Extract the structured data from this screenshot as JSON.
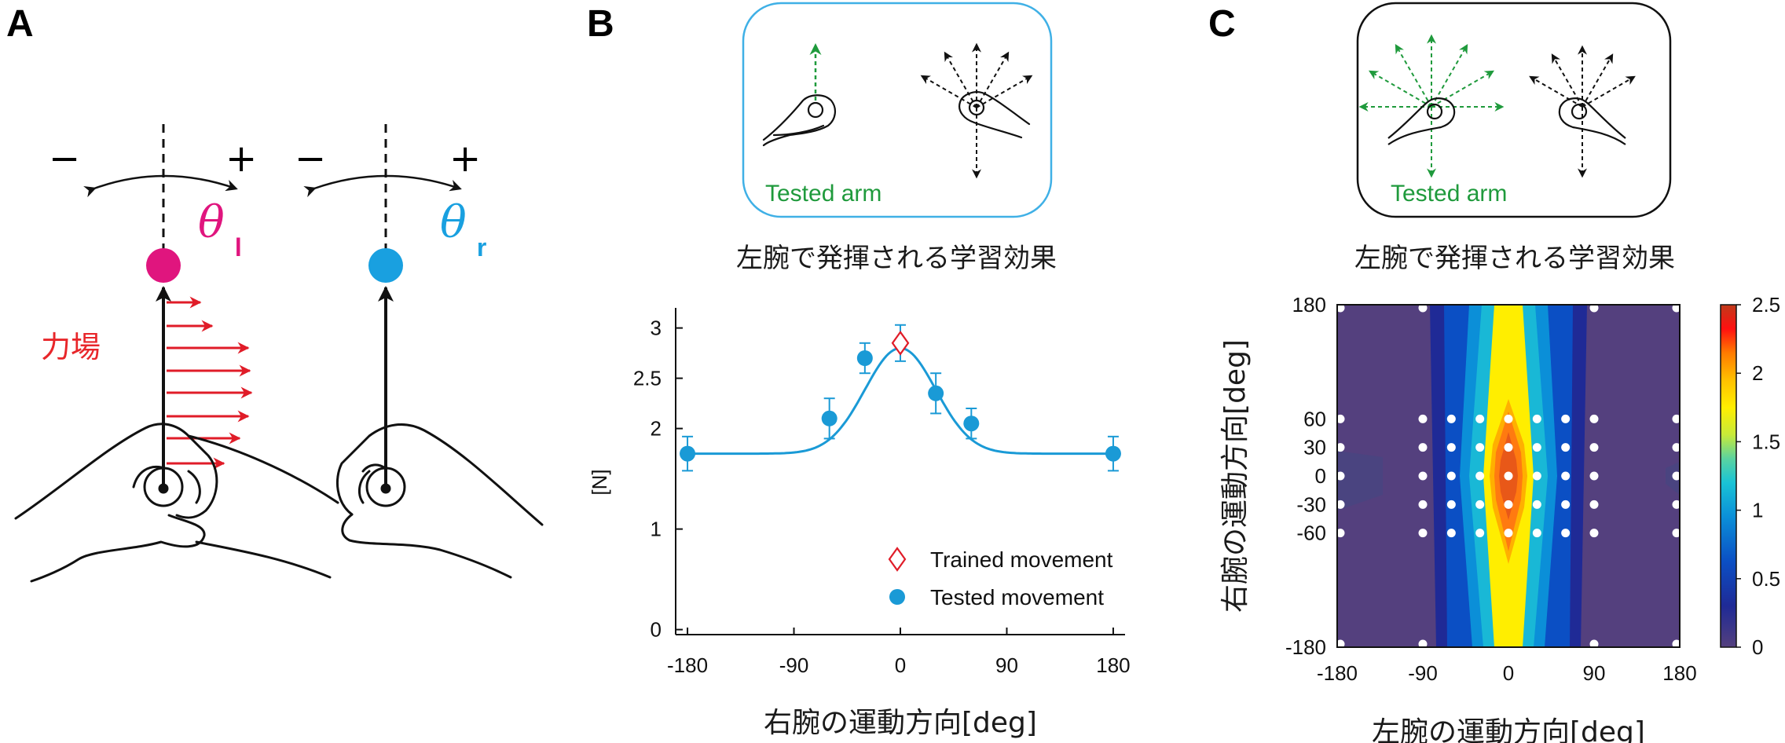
{
  "panels": {
    "a": {
      "letter": "A",
      "minus_left": "−",
      "plus_left": "+",
      "minus_right": "−",
      "plus_right": "+",
      "theta_symbol": "θ",
      "theta_left_sub": "l",
      "theta_right_sub": "r",
      "force_field_label": "力場",
      "colors": {
        "left_dot": "#e0157e",
        "right_dot": "#19a0e0",
        "force_arrows": "#e01c28"
      }
    },
    "b": {
      "letter": "B",
      "inset_label": "Tested arm",
      "title": "左腕で発揮される学習効果",
      "inset_border_color": "#3fb0e6"
    },
    "c": {
      "letter": "C",
      "inset_label": "Tested arm",
      "title": "左腕で発揮される学習効果"
    }
  },
  "chart_data": [
    {
      "type": "line",
      "panel": "B",
      "title": "左腕で発揮される学習効果",
      "xlabel": "右腕の運動方向[deg]",
      "ylabel": "[N]",
      "xlim": [
        -190,
        190
      ],
      "ylim": [
        -0.05,
        3.2
      ],
      "xticks": [
        -180,
        -90,
        0,
        90,
        180
      ],
      "xtick_labels": [
        "-180",
        "-90",
        "0",
        "90",
        "180"
      ],
      "yticks": [
        0,
        1,
        2,
        2.5,
        3
      ],
      "ytick_labels": [
        "0",
        "1",
        "2",
        "2.5",
        "3"
      ],
      "fit_curve": {
        "baseline": 1.75,
        "amplitude": 1.05,
        "sigma_deg": 30,
        "color": "#1a9ad6"
      },
      "series": [
        {
          "name": "Tested movement",
          "marker": "filled-circle",
          "color": "#1a9ad6",
          "x": [
            -180,
            -60,
            -30,
            30,
            60,
            180
          ],
          "y": [
            1.75,
            2.1,
            2.7,
            2.35,
            2.05,
            1.75
          ],
          "err": [
            0.17,
            0.2,
            0.15,
            0.2,
            0.15,
            0.17
          ]
        },
        {
          "name": "Trained movement",
          "marker": "open-diamond",
          "color": "#e01c28",
          "x": [
            0
          ],
          "y": [
            2.85
          ],
          "err": [
            0.18
          ]
        }
      ],
      "legend": [
        "Trained movement",
        "Tested movement"
      ],
      "legend_position": "bottom-right"
    },
    {
      "type": "heatmap",
      "panel": "C",
      "title": "左腕で発揮される学習効果",
      "xlabel": "左腕の運動方向[deg]",
      "ylabel": "右腕の運動方向[deg]",
      "xlim": [
        -180,
        180
      ],
      "ylim": [
        -180,
        180
      ],
      "xticks": [
        -180,
        -90,
        0,
        90,
        180
      ],
      "xtick_labels": [
        "-180",
        "-90",
        "0",
        "90",
        "180"
      ],
      "yticks": [
        180,
        60,
        30,
        0,
        -30,
        -60,
        -180
      ],
      "ytick_labels": [
        "180",
        "60",
        "30",
        "0",
        "-30",
        "-60",
        "-180"
      ],
      "colorbar": {
        "min": 0,
        "max": 2.5,
        "ticks": [
          0,
          0.5,
          1,
          1.5,
          2,
          2.5
        ],
        "tick_labels": [
          "0",
          "0.5",
          "1",
          "1.5",
          "2",
          "2.5"
        ]
      },
      "sample_x": [
        -180,
        -90,
        -60,
        -30,
        0,
        30,
        60,
        90,
        180
      ],
      "sample_y": [
        -180,
        -60,
        -30,
        0,
        30,
        60,
        180
      ],
      "peak": {
        "x": 0,
        "y": 0,
        "value": 2.3
      },
      "background_value": 0.1
    }
  ]
}
